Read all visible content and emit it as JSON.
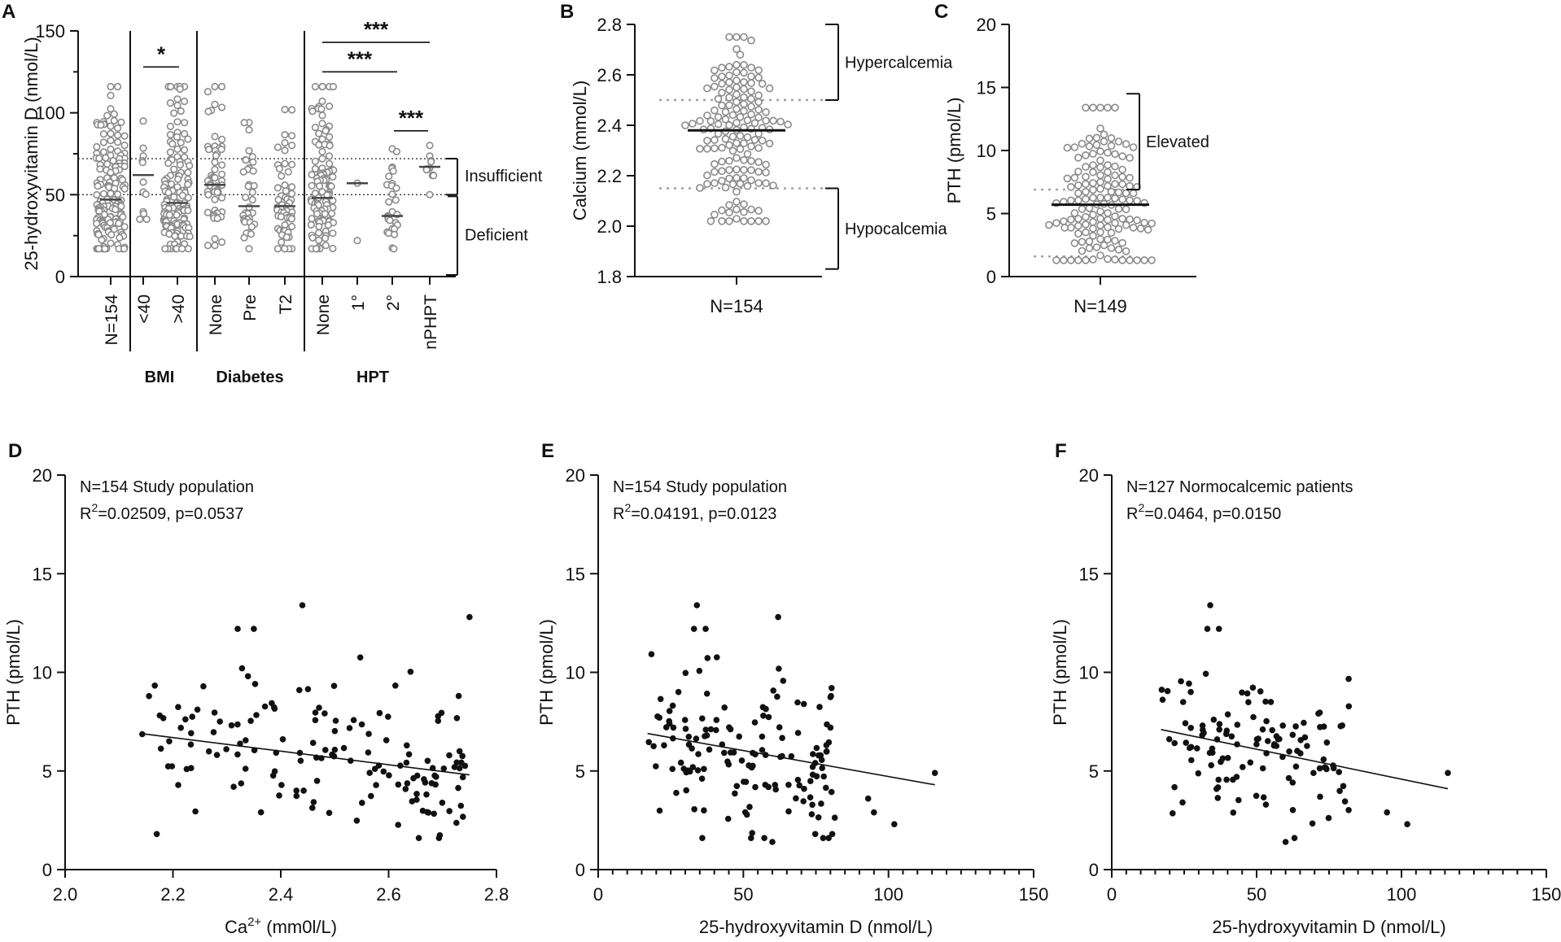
{
  "colors": {
    "axis": "#111111",
    "marker_open": "#8a8a8a",
    "marker_filled": "#111111",
    "ref_line": "#a0a0a0"
  },
  "chart_data": [
    {
      "id": "A",
      "panel_label": "A",
      "type": "scatter",
      "ylabel": "25-hydroxyvitamin D (nmol/L)",
      "ylim": [
        0,
        150
      ],
      "yticks": [
        "0",
        "50",
        "100",
        "150"
      ],
      "categories": [
        "N=154",
        "<40",
        ">40",
        "None",
        "Pre",
        "T2",
        "None",
        "1°",
        "2°",
        "nPHPT"
      ],
      "groups": [
        {
          "label": "BMI",
          "members": [
            1,
            2
          ]
        },
        {
          "label": "Diabetes",
          "members": [
            3,
            4,
            5
          ]
        },
        {
          "label": "HPT",
          "members": [
            6,
            7,
            8,
            9
          ]
        }
      ],
      "series": [
        {
          "category": "N=154",
          "n": 154,
          "median": 47,
          "min": 17,
          "max": 116
        },
        {
          "category": "<40",
          "n": 12,
          "median": 62,
          "min": 35,
          "max": 95
        },
        {
          "category": ">40",
          "n": 142,
          "median": 45,
          "min": 17,
          "max": 116
        },
        {
          "category": "None",
          "n": 58,
          "median": 56,
          "min": 19,
          "max": 116
        },
        {
          "category": "Pre",
          "n": 36,
          "median": 43,
          "min": 17,
          "max": 94
        },
        {
          "category": "T2",
          "n": 60,
          "median": 43,
          "min": 17,
          "max": 102
        },
        {
          "category": "None",
          "n": 110,
          "median": 48,
          "min": 17,
          "max": 116
        },
        {
          "category": "1°",
          "n": 2,
          "median": 57,
          "min": 22,
          "max": 57
        },
        {
          "category": "2°",
          "n": 30,
          "median": 37,
          "min": 17,
          "max": 78
        },
        {
          "category": "nPHPT",
          "n": 12,
          "median": 67,
          "min": 50,
          "max": 80
        }
      ],
      "reference_lines": [
        50,
        72
      ],
      "significance": [
        {
          "label": "*",
          "from": "<40",
          "to": ">40",
          "y": 128
        },
        {
          "label": "***",
          "from": "None",
          "to": "nPHPT",
          "y": 143
        },
        {
          "label": "***",
          "from": "None",
          "to": "2°",
          "y": 125
        },
        {
          "label": "***",
          "from": "2°",
          "to": "nPHPT",
          "y": 89
        }
      ],
      "annotations": [
        {
          "label": "Insufficient",
          "range": [
            50,
            72
          ]
        },
        {
          "label": "Deficient",
          "range": [
            0,
            50
          ]
        }
      ]
    },
    {
      "id": "B",
      "panel_label": "B",
      "type": "scatter",
      "ylabel": "Calcium (mmol/L)",
      "ylim": [
        1.8,
        2.8
      ],
      "yticks": [
        "1.8",
        "2.0",
        "2.2",
        "2.4",
        "2.6",
        "2.8"
      ],
      "xlabel": "N=154",
      "n": 154,
      "median": 2.38,
      "min": 2.02,
      "max": 2.75,
      "reference_lines": [
        2.15,
        2.5
      ],
      "annotations": [
        {
          "label": "Hypercalcemia",
          "range": [
            2.5,
            2.8
          ]
        },
        {
          "label": "Hypocalcemia",
          "range": [
            1.83,
            2.15
          ]
        }
      ]
    },
    {
      "id": "C",
      "panel_label": "C",
      "type": "scatter",
      "ylabel": "PTH (pmol/L)",
      "ylim": [
        0,
        20
      ],
      "yticks": [
        "0",
        "5",
        "10",
        "15",
        "20"
      ],
      "xlabel": "N=149",
      "n": 149,
      "median": 5.7,
      "min": 1.3,
      "max": 13.4,
      "reference_lines": [
        1.6,
        6.9
      ],
      "annotations": [
        {
          "label": "Elevated",
          "range": [
            6.9,
            14.5
          ]
        }
      ]
    },
    {
      "id": "D",
      "panel_label": "D",
      "type": "scatter",
      "title": "N=154 Study population",
      "stat_prefix": "R",
      "stat_sup": "2",
      "stat_rest": "=0.02509, p=0.0537",
      "ylabel": "PTH (pmol/L)",
      "xlabel_main": "Ca",
      "xlabel_sup": "2+",
      "xlabel_rest": " (mm0l/L)",
      "xlim": [
        2.0,
        2.8
      ],
      "ylim": [
        0,
        20
      ],
      "xticks": [
        "2.0",
        "2.2",
        "2.4",
        "2.6",
        "2.8"
      ],
      "yticks": [
        "0",
        "5",
        "10",
        "15",
        "20"
      ],
      "fit": {
        "x": [
          2.14,
          2.75
        ],
        "y": [
          6.9,
          4.8
        ]
      },
      "n": 154,
      "x_range": [
        2.14,
        2.75
      ],
      "x_center": 2.38,
      "y_center": 5.8,
      "outliers": [
        {
          "x": 2.75,
          "y": 12.8
        },
        {
          "x": 2.73,
          "y": 8.8
        },
        {
          "x": 2.44,
          "y": 13.4
        },
        {
          "x": 2.32,
          "y": 12.2
        },
        {
          "x": 2.35,
          "y": 12.2
        },
        {
          "x": 2.17,
          "y": 1.8
        }
      ]
    },
    {
      "id": "E",
      "panel_label": "E",
      "type": "scatter",
      "title": "N=154 Study population",
      "stat_prefix": "R",
      "stat_sup": "2",
      "stat_rest": "=0.04191, p=0.0123",
      "ylabel": "PTH (pmol/L)",
      "xlabel": "25-hydroxyvitamin D (nmol/L)",
      "xlim": [
        0,
        150
      ],
      "ylim": [
        0,
        20
      ],
      "xticks": [
        "0",
        "50",
        "100",
        "150"
      ],
      "yticks": [
        "0",
        "5",
        "10",
        "15",
        "20"
      ],
      "fit": {
        "x": [
          17,
          116
        ],
        "y": [
          6.9,
          4.3
        ]
      },
      "n": 154,
      "x_range": [
        17,
        82
      ],
      "x_center": 45,
      "y_center": 5.8,
      "outliers": [
        {
          "x": 116,
          "y": 4.9
        },
        {
          "x": 102,
          "y": 2.3
        },
        {
          "x": 95,
          "y": 2.9
        },
        {
          "x": 93,
          "y": 3.6
        },
        {
          "x": 34,
          "y": 13.4
        },
        {
          "x": 62,
          "y": 12.8
        },
        {
          "x": 33,
          "y": 12.2
        },
        {
          "x": 37,
          "y": 12.2
        },
        {
          "x": 60,
          "y": 1.4
        }
      ]
    },
    {
      "id": "F",
      "panel_label": "F",
      "type": "scatter",
      "title": "N=127 Normocalcemic patients",
      "stat_prefix": "R",
      "stat_sup": "2",
      "stat_rest": "=0.0464, p=0.0150",
      "ylabel": "PTH (pmol/L)",
      "xlabel": "25-hydroxyvitamin D (nmol/L)",
      "xlim": [
        0,
        150
      ],
      "ylim": [
        0,
        20
      ],
      "xticks": [
        "0",
        "50",
        "100",
        "150"
      ],
      "yticks": [
        "0",
        "5",
        "10",
        "15",
        "20"
      ],
      "fit": {
        "x": [
          17,
          116
        ],
        "y": [
          7.1,
          4.1
        ]
      },
      "n": 127,
      "x_range": [
        17,
        82
      ],
      "x_center": 45,
      "y_center": 5.8,
      "outliers": [
        {
          "x": 116,
          "y": 4.9
        },
        {
          "x": 102,
          "y": 2.3
        },
        {
          "x": 95,
          "y": 2.9
        },
        {
          "x": 34,
          "y": 13.4
        },
        {
          "x": 33,
          "y": 12.2
        },
        {
          "x": 37,
          "y": 12.2
        },
        {
          "x": 60,
          "y": 1.4
        }
      ]
    }
  ]
}
